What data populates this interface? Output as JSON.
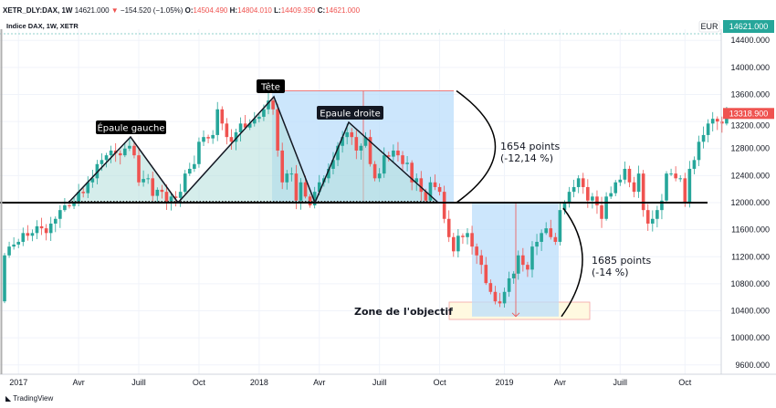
{
  "header": {
    "symbol": "XETR_DLY:DAX, 1W",
    "last": "14621.000",
    "change": "−154.520 (−1.05%)",
    "o_label": "O:",
    "o": "14504.490",
    "h_label": "H:",
    "h": "14804.010",
    "l_label": "L:",
    "l": "14409.350",
    "c_label": "C:",
    "c": "14621.000"
  },
  "chart_title": "Indice DAX, 1W, XETR",
  "price_axis": {
    "top_price_tag": "14621.000",
    "currency": "EUR",
    "last_price_tag": "13318.900"
  },
  "brand": "TradingView",
  "colors": {
    "up": "#26a69a",
    "down": "#ef5350",
    "neckline": "#000000",
    "range_fill": "#bbdefb",
    "pattern_fill": "#b2dfdb",
    "target_zone": "#fff9e0"
  },
  "chart_data": {
    "type": "candlestick",
    "x_start": "2016-12-12",
    "x_interval": "1W",
    "first_open": 10540,
    "closes": [
      11220,
      11350,
      11380,
      11420,
      11550,
      11510,
      11550,
      11650,
      11620,
      11550,
      11690,
      11760,
      11890,
      11960,
      11950,
      12000,
      12160,
      12140,
      12300,
      12360,
      12570,
      12630,
      12700,
      12770,
      12730,
      12700,
      12800,
      12840,
      12700,
      12300,
      12350,
      12360,
      12100,
      12190,
      12160,
      12000,
      12090,
      12070,
      12160,
      12430,
      12500,
      12570,
      12900,
      12970,
      12950,
      13000,
      13380,
      13170,
      12970,
      12900,
      13040,
      13170,
      13110,
      13170,
      13240,
      13270,
      13380,
      13510,
      13380,
      12770,
      12300,
      12430,
      12430,
      12030,
      12300,
      12090,
      11960,
      12160,
      12300,
      12360,
      12500,
      12630,
      12840,
      12970,
      13040,
      12970,
      12770,
      12840,
      12970,
      12570,
      12360,
      12430,
      12700,
      12680,
      12770,
      12700,
      12570,
      12590,
      12300,
      12360,
      12160,
      12030,
      12300,
      12230,
      12160,
      11760,
      11490,
      11280,
      11510,
      11490,
      11550,
      11350,
      11220,
      11080,
      10810,
      10680,
      10540,
      10510,
      10680,
      10880,
      10950,
      11220,
      11080,
      11010,
      11350,
      11420,
      11550,
      11620,
      11490,
      11420,
      11890,
      12000,
      12160,
      12230,
      12360,
      12230,
      12030,
      12090,
      11960,
      11760,
      12090,
      12140,
      12300,
      12340,
      12500,
      12300,
      12160,
      12430,
      11890,
      11690,
      11760,
      11890,
      12030,
      12430,
      12430,
      12360,
      12360,
      12000,
      12500,
      12630,
      12900,
      13000,
      13170,
      13240,
      13200,
      13170,
      13310,
      13319
    ],
    "y_ticks": [
      14400,
      14000,
      13600,
      13200,
      12800,
      12400,
      12000,
      11600,
      11200,
      10800,
      10400,
      10000,
      9600
    ],
    "y_tick_labels": [
      "14400.000",
      "14000.000",
      "13600.000",
      "13200.000",
      "12800.000",
      "12400.000",
      "12000.000",
      "11600.000",
      "11200.000",
      "10800.000",
      "10400.000",
      "10000.000",
      "9600.000"
    ],
    "x_ticks": [
      {
        "date": "2017-01-02",
        "label": "2017"
      },
      {
        "date": "2017-04-03",
        "label": "Avr"
      },
      {
        "date": "2017-07-03",
        "label": "Juill"
      },
      {
        "date": "2017-10-02",
        "label": "Oct"
      },
      {
        "date": "2018-01-01",
        "label": "2018"
      },
      {
        "date": "2018-04-02",
        "label": "Avr"
      },
      {
        "date": "2018-07-02",
        "label": "Juill"
      },
      {
        "date": "2018-10-01",
        "label": "Oct"
      },
      {
        "date": "2019-01-07",
        "label": "2019"
      },
      {
        "date": "2019-04-01",
        "label": "Avr"
      },
      {
        "date": "2019-07-01",
        "label": "Juill"
      },
      {
        "date": "2019-10-07",
        "label": "Oct"
      }
    ],
    "neckline": 12000,
    "annotations": {
      "left_shoulder": "Épaule gauche",
      "head": "Tête",
      "right_shoulder": "Epaule droite",
      "head_height_text1": "1654 points",
      "head_height_text2": "(-12,14 %)",
      "head_height": 1654,
      "target_text1": "1685 points",
      "target_text2": "(-14 %)",
      "target_drop": 1685,
      "target_zone": "Zone de l'objectif"
    }
  }
}
